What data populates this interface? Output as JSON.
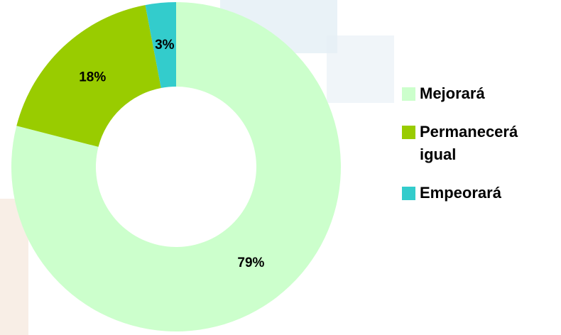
{
  "chart_data": {
    "type": "donut",
    "categories": [
      "Mejorará",
      "Permanecerá igual",
      "Empeorará"
    ],
    "values": [
      79,
      18,
      3
    ],
    "value_labels": [
      "79%",
      "18%",
      "3%"
    ],
    "colors": [
      "#ccffcc",
      "#99cc00",
      "#33cccc"
    ],
    "legend": "right"
  }
}
